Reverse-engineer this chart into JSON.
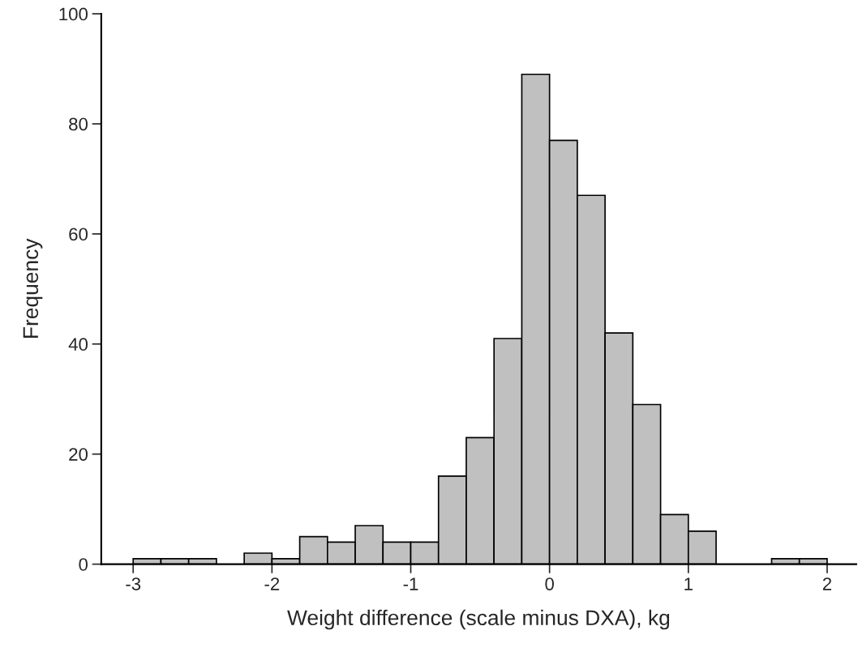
{
  "chart_data": {
    "type": "histogram",
    "xlabel": "Weight difference (scale minus DXA), kg",
    "ylabel": "Frequency",
    "bins": [
      -3.0,
      -2.8,
      -2.6,
      -2.4,
      -2.2,
      -2.0,
      -1.8,
      -1.6,
      -1.4,
      -1.2,
      -1.0,
      -0.8,
      -0.6,
      -0.4,
      -0.2,
      0.0,
      0.2,
      0.4,
      0.6,
      0.8,
      1.0,
      1.2,
      1.4,
      1.6,
      1.8,
      2.0
    ],
    "values": [
      1,
      1,
      1,
      0,
      2,
      1,
      5,
      4,
      7,
      4,
      4,
      16,
      23,
      41,
      89,
      77,
      67,
      42,
      29,
      9,
      6,
      0,
      0,
      1,
      1
    ],
    "color": "#c0c0c0",
    "xlim": [
      -3.23,
      2.21
    ],
    "xticks": [
      -3,
      -2,
      -1,
      0,
      1,
      2
    ],
    "ylim": [
      0,
      100
    ],
    "yticks": [
      0,
      20,
      40,
      60,
      80,
      100
    ],
    "grid": false
  }
}
